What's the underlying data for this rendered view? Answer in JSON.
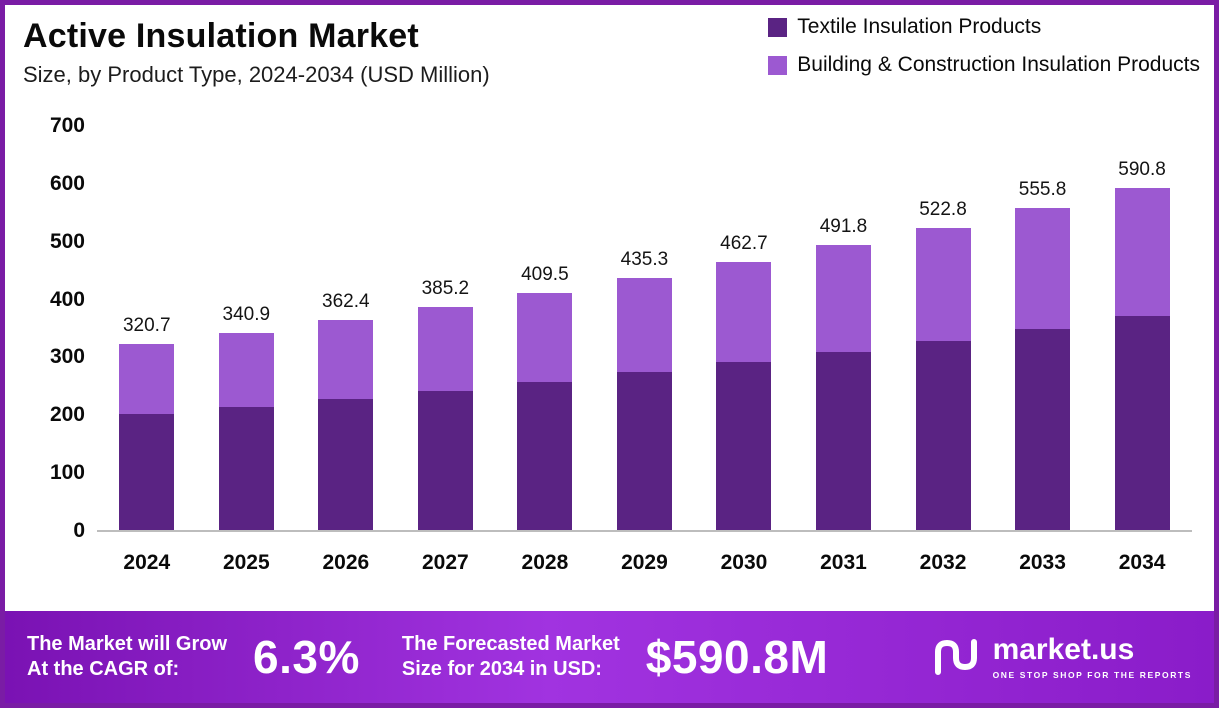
{
  "header": {
    "title": "Active Insulation Market",
    "subtitle": "Size, by Product Type, 2024-2034 (USD Million)"
  },
  "legend": {
    "items": [
      {
        "label": "Textile Insulation Products",
        "color": "#5a2383"
      },
      {
        "label": "Building & Construction Insulation Products",
        "color": "#9c59d1"
      }
    ]
  },
  "chart_data": {
    "type": "bar",
    "stacked": true,
    "title": "Active Insulation Market Size, by Product Type, 2024-2034 (USD Million)",
    "categories": [
      "2024",
      "2025",
      "2026",
      "2027",
      "2028",
      "2029",
      "2030",
      "2031",
      "2032",
      "2033",
      "2034"
    ],
    "series": [
      {
        "name": "Textile Insulation Products",
        "color": "#5a2383",
        "values": [
          200,
          213,
          227,
          241,
          256,
          273,
          290,
          308,
          327,
          348,
          370
        ]
      },
      {
        "name": "Building & Construction Insulation Products",
        "color": "#9c59d1",
        "values": [
          120.7,
          127.9,
          135.4,
          144.2,
          153.5,
          162.3,
          172.7,
          183.8,
          195.8,
          207.8,
          220.8
        ]
      }
    ],
    "totals": [
      320.7,
      340.9,
      362.4,
      385.2,
      409.5,
      435.3,
      462.7,
      491.8,
      522.8,
      555.8,
      590.8
    ],
    "total_labels": [
      "320.7",
      "340.9",
      "362.4",
      "385.2",
      "409.5",
      "435.3",
      "462.7",
      "491.8",
      "522.8",
      "555.8",
      "590.8"
    ],
    "xlabel": "",
    "ylabel": "",
    "ylim": [
      0,
      700
    ],
    "yticks": [
      0,
      100,
      200,
      300,
      400,
      500,
      600,
      700
    ],
    "grid": false,
    "legend_position": "top-right"
  },
  "footer": {
    "cagr_label_line1": "The Market will Grow",
    "cagr_label_line2": "At the CAGR of:",
    "cagr_value": "6.3%",
    "forecast_label_line1": "The Forecasted Market",
    "forecast_label_line2": "Size for 2034 in USD:",
    "forecast_value": "$590.8M",
    "brand_name": "market.us",
    "brand_tagline": "ONE STOP SHOP FOR THE REPORTS"
  },
  "colors": {
    "frame_border": "#7a1ca5",
    "series_dark": "#5a2383",
    "series_light": "#9c59d1",
    "footer_gradient_start": "#7a12b3",
    "footer_gradient_mid": "#a133e0"
  }
}
